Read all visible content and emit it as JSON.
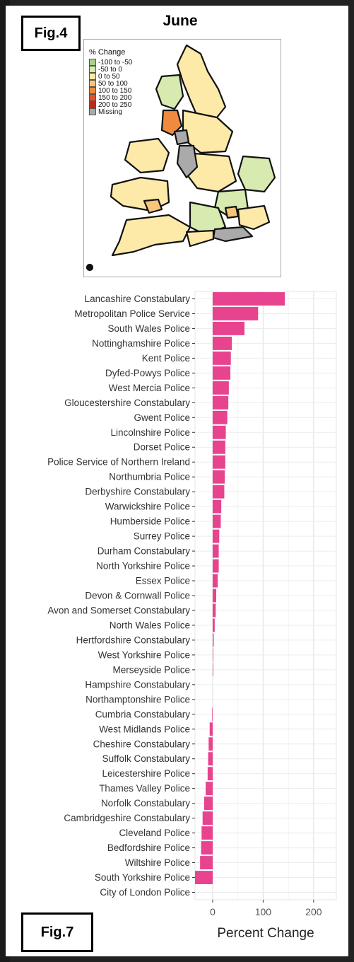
{
  "figure_labels": {
    "top": "Fig.4",
    "bottom": "Fig.7"
  },
  "map": {
    "title": "June",
    "legend": {
      "title": "% Change",
      "items": [
        {
          "label": "-100 to -50",
          "color": "#a8d08d"
        },
        {
          "label": "-50 to 0",
          "color": "#d7ebb0"
        },
        {
          "label": "0 to 50",
          "color": "#fde9a8"
        },
        {
          "label": "50 to 100",
          "color": "#f9c57a"
        },
        {
          "label": "100 to 150",
          "color": "#f08a3e"
        },
        {
          "label": "150 to 200",
          "color": "#e0532a"
        },
        {
          "label": "200 to 250",
          "color": "#c0281b"
        },
        {
          "label": "Missing",
          "color": "#aaaaaa"
        }
      ]
    }
  },
  "chart_data": {
    "type": "bar",
    "orientation": "horizontal",
    "xlabel": "Percent Change",
    "ylabel": "",
    "xlim": [
      -35,
      245
    ],
    "xticks": [
      0,
      100,
      200
    ],
    "bar_color": "#e8438f",
    "grid": true,
    "categories": [
      "Lancashire Constabulary",
      "Metropolitan Police Service",
      "South Wales Police",
      "Nottinghamshire Police",
      "Kent Police",
      "Dyfed-Powys Police",
      "West Mercia Police",
      "Gloucestershire Constabulary",
      "Gwent Police",
      "Lincolnshire Police",
      "Dorset Police",
      "Police Service of Northern Ireland",
      "Northumbria Police",
      "Derbyshire Constabulary",
      "Warwickshire Police",
      "Humberside Police",
      "Surrey Police",
      "Durham Constabulary",
      "North Yorkshire Police",
      "Essex Police",
      "Devon & Cornwall Police",
      "Avon and Somerset Constabulary",
      "North Wales Police",
      "Hertfordshire Constabulary",
      "West Yorkshire Police",
      "Merseyside Police",
      "Hampshire Constabulary",
      "Northamptonshire Police",
      "Cumbria Constabulary",
      "West Midlands Police",
      "Cheshire Constabulary",
      "Suffolk Constabulary",
      "Leicestershire Police",
      "Thames Valley Police",
      "Norfolk Constabulary",
      "Cambridgeshire Constabulary",
      "Cleveland Police",
      "Bedfordshire Police",
      "Wiltshire Police",
      "South Yorkshire Police",
      "City of London Police"
    ],
    "values": [
      143,
      90,
      63,
      38,
      36,
      35,
      32,
      31,
      29,
      26,
      25,
      25,
      24,
      23,
      17,
      16,
      13,
      12,
      12,
      10,
      7,
      6,
      4,
      2,
      1,
      0.5,
      0,
      0,
      -1,
      -6,
      -8,
      -9,
      -10,
      -14,
      -17,
      -20,
      -22,
      -23,
      -25,
      -35,
      0
    ]
  }
}
